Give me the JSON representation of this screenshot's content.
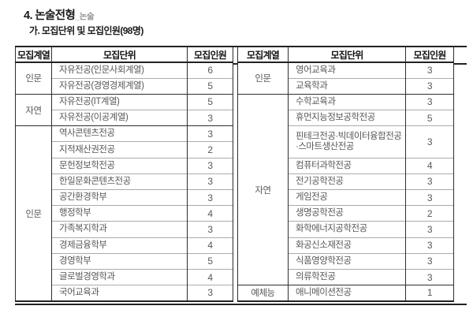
{
  "page": {
    "title_main": "4. 논술전형",
    "title_suffix": "_논술",
    "subtitle": "가. 모집단위 및 모집인원(98명)"
  },
  "colors": {
    "text_title": "#1b1b1b",
    "text_cell": "#585858",
    "border_dark": "#222222",
    "border_light": "#ababab",
    "background": "#ffffff"
  },
  "tables": {
    "headers": [
      "모집계열",
      "모집단위",
      "모집인원"
    ],
    "left": {
      "groups": [
        {
          "category": "인문",
          "rows": [
            {
              "unit": "자유전공(인문사회계열)",
              "count": "6"
            },
            {
              "unit": "자유전공(경영경제계열)",
              "count": "5"
            }
          ]
        },
        {
          "category": "자연",
          "rows": [
            {
              "unit": "자유전공(IT계열)",
              "count": "5"
            },
            {
              "unit": "자유전공(이공계열)",
              "count": "3"
            }
          ]
        },
        {
          "category": "인문",
          "rows": [
            {
              "unit": "역사콘텐츠전공",
              "count": "3"
            },
            {
              "unit": "지적재산권전공",
              "count": "2"
            },
            {
              "unit": "문헌정보학전공",
              "count": "3"
            },
            {
              "unit": "한일문화콘텐츠전공",
              "count": "3"
            },
            {
              "unit": "공간환경학부",
              "count": "3"
            },
            {
              "unit": "행정학부",
              "count": "4"
            },
            {
              "unit": "가족복지학과",
              "count": "3"
            },
            {
              "unit": "경제금융학부",
              "count": "4"
            },
            {
              "unit": "경영학부",
              "count": "5"
            },
            {
              "unit": "글로벌경영학과",
              "count": "4"
            },
            {
              "unit": "국어교육과",
              "count": "3"
            }
          ]
        }
      ]
    },
    "right": {
      "groups": [
        {
          "category": "인문",
          "rows": [
            {
              "unit": "영어교육과",
              "count": "3"
            },
            {
              "unit": "교육학과",
              "count": "3"
            }
          ]
        },
        {
          "category": "자연",
          "rows": [
            {
              "unit": "수학교육과",
              "count": "3"
            },
            {
              "unit": "휴먼지능정보공학전공",
              "count": "5"
            },
            {
              "unit": "핀테크전공·빅데이터융합전공·스마트생산전공",
              "count": "3"
            },
            {
              "unit": "컴퓨터과학전공",
              "count": "4"
            },
            {
              "unit": "전기공학전공",
              "count": "3"
            },
            {
              "unit": "게임전공",
              "count": "3"
            },
            {
              "unit": "생명공학전공",
              "count": "2"
            },
            {
              "unit": "화학에너지공학전공",
              "count": "3"
            },
            {
              "unit": "화공신소재전공",
              "count": "3"
            },
            {
              "unit": "식품영양학전공",
              "count": "3"
            },
            {
              "unit": "의류학전공",
              "count": "3"
            }
          ]
        },
        {
          "category": "예체능",
          "rows": [
            {
              "unit": "애니메이션전공",
              "count": "1"
            }
          ]
        }
      ]
    }
  }
}
